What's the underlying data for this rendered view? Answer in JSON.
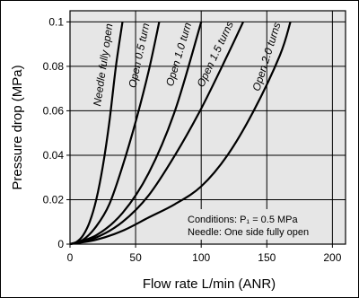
{
  "chart_data": {
    "type": "line",
    "xlabel": "Flow rate L/min (ANR)",
    "ylabel": "Pressure drop (MPa)",
    "xlim": [
      0,
      210
    ],
    "ylim": [
      0,
      0.105
    ],
    "x_ticks": [
      "0",
      "50",
      "100",
      "150",
      "200"
    ],
    "y_ticks": [
      "0",
      "0.02",
      "0.04",
      "0.06",
      "0.08",
      "0.1"
    ],
    "grid": true,
    "series": [
      {
        "name": "Needle fully open",
        "points": [
          [
            0,
            0
          ],
          [
            5,
            0.001
          ],
          [
            10,
            0.004
          ],
          [
            15,
            0.01
          ],
          [
            20,
            0.02
          ],
          [
            25,
            0.035
          ],
          [
            30,
            0.055
          ],
          [
            35,
            0.08
          ],
          [
            40,
            0.1
          ]
        ]
      },
      {
        "name": "Open 0.5 turn",
        "points": [
          [
            0,
            0
          ],
          [
            10,
            0.002
          ],
          [
            20,
            0.008
          ],
          [
            30,
            0.018
          ],
          [
            40,
            0.035
          ],
          [
            50,
            0.055
          ],
          [
            60,
            0.078
          ],
          [
            68,
            0.1
          ]
        ]
      },
      {
        "name": "Open 1.0 turn",
        "points": [
          [
            0,
            0
          ],
          [
            20,
            0.004
          ],
          [
            40,
            0.014
          ],
          [
            60,
            0.032
          ],
          [
            80,
            0.06
          ],
          [
            100,
            0.1
          ]
        ]
      },
      {
        "name": "Open 1.5 turns",
        "points": [
          [
            0,
            0
          ],
          [
            20,
            0.003
          ],
          [
            40,
            0.01
          ],
          [
            60,
            0.022
          ],
          [
            80,
            0.04
          ],
          [
            100,
            0.061
          ],
          [
            120,
            0.085
          ],
          [
            132,
            0.1
          ]
        ]
      },
      {
        "name": "Open 2.0 turns",
        "points": [
          [
            0,
            0
          ],
          [
            20,
            0.002
          ],
          [
            40,
            0.006
          ],
          [
            60,
            0.012
          ],
          [
            80,
            0.018
          ],
          [
            100,
            0.026
          ],
          [
            120,
            0.04
          ],
          [
            140,
            0.06
          ],
          [
            160,
            0.085
          ],
          [
            168,
            0.1
          ]
        ]
      }
    ],
    "annotations": [
      "Conditions: P₁ = 0.5 MPa",
      "Needle: One side fully open"
    ]
  }
}
